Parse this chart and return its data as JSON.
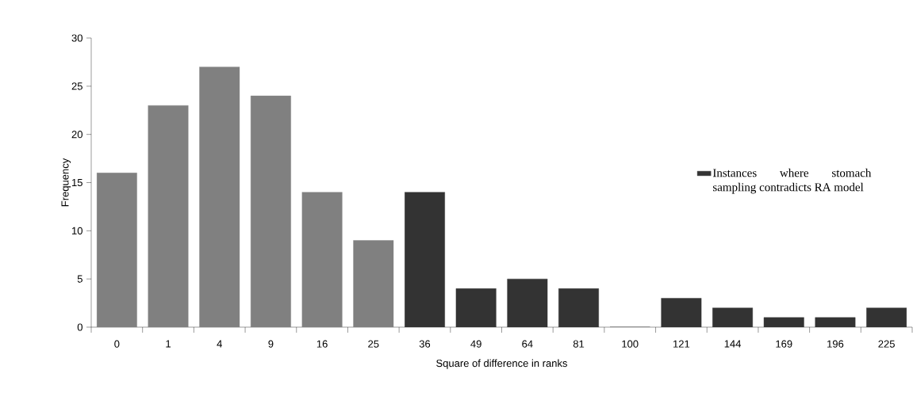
{
  "chart_data": {
    "type": "bar",
    "xlabel": "Square of difference in ranks",
    "ylabel": "Frequency",
    "categories": [
      "0",
      "1",
      "4",
      "9",
      "16",
      "25",
      "36",
      "49",
      "64",
      "81",
      "100",
      "121",
      "144",
      "169",
      "196",
      "225"
    ],
    "series": [
      {
        "color": "#808080",
        "values": [
          16,
          23,
          27,
          24,
          14,
          9,
          null,
          null,
          null,
          null,
          null,
          null,
          null,
          null,
          null,
          null
        ]
      },
      {
        "name": "Instances where stomach sampling contradicts RA model",
        "color": "#333333",
        "values": [
          null,
          null,
          null,
          null,
          null,
          null,
          14,
          4,
          5,
          4,
          0,
          3,
          2,
          1,
          1,
          2
        ]
      }
    ],
    "ylim": [
      0,
      30
    ],
    "yticks": [
      0,
      5,
      10,
      15,
      20,
      25,
      30
    ],
    "grid": false,
    "legend": "right"
  }
}
